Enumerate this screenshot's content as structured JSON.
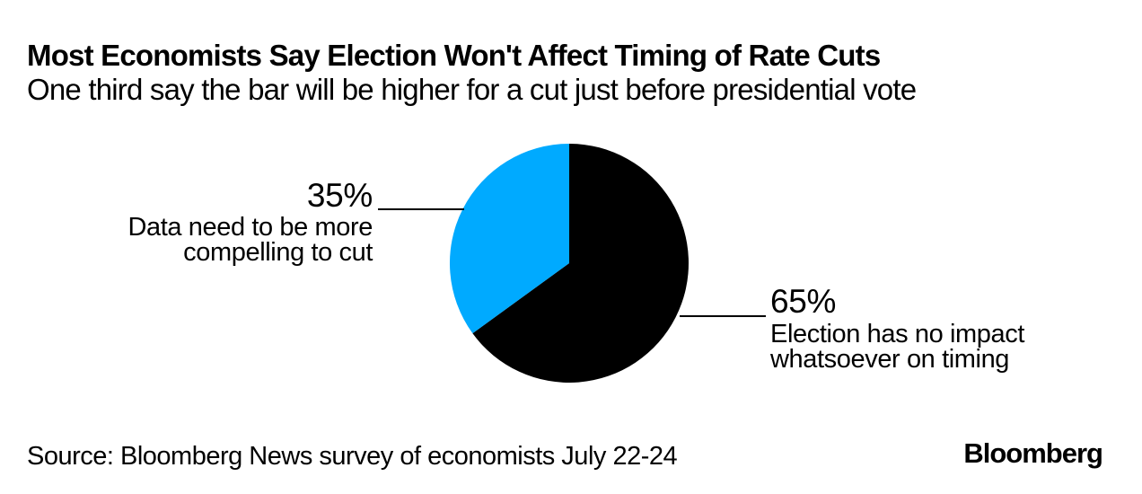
{
  "header": {
    "title": "Most Economists Say Election Won't Affect Timing of Rate Cuts",
    "subtitle": "One third say the bar will be higher for a cut just before presidential vote"
  },
  "chart_data": {
    "type": "pie",
    "title": "Most Economists Say Election Won't Affect Timing of Rate Cuts",
    "subtitle": "One third say the bar will be higher for a cut just before presidential vote",
    "unit": "%",
    "start_angle_deg": 0,
    "direction": "clockwise",
    "legend_position": "callout-labels",
    "slices": [
      {
        "label": "Election has no impact whatsoever on timing",
        "value": 65,
        "color": "#000000"
      },
      {
        "label": "Data need to be more compelling to cut",
        "value": 35,
        "color": "#00aaff"
      }
    ],
    "source": "Source: Bloomberg News survey of economists July 22-24"
  },
  "labels": {
    "left": {
      "pct": "35%",
      "line1": "Data need to be more",
      "line2": "compelling to cut"
    },
    "right": {
      "pct": "65%",
      "line1": "Election has no impact",
      "line2": "whatsoever on timing"
    }
  },
  "footer": {
    "source": "Source: Bloomberg News survey of economists July 22-24",
    "brand": "Bloomberg"
  },
  "colors": {
    "background": "#ffffff",
    "text": "#000000",
    "slice_black": "#000000",
    "slice_blue": "#00aaff",
    "callout_line": "#000000"
  }
}
